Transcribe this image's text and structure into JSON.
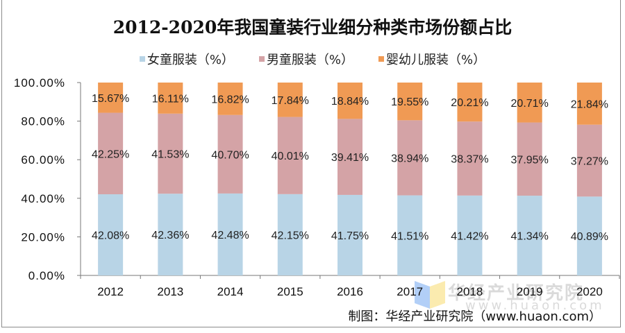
{
  "chart_data": {
    "type": "bar",
    "stacked": true,
    "title": "2012-2020年我国童装行业细分种类市场份额占比",
    "categories": [
      "2012",
      "2013",
      "2014",
      "2015",
      "2016",
      "2017",
      "2018",
      "2019",
      "2020"
    ],
    "series": [
      {
        "name": "女童服装（%）",
        "color": "#b8d4e6",
        "values": [
          42.08,
          42.36,
          42.48,
          42.15,
          41.75,
          41.51,
          41.42,
          41.34,
          40.89
        ]
      },
      {
        "name": "男童服装（%）",
        "color": "#d4a3a6",
        "values": [
          42.25,
          41.53,
          40.7,
          40.01,
          39.41,
          38.94,
          38.37,
          37.95,
          37.27
        ]
      },
      {
        "name": "婴幼儿服装（%）",
        "color": "#f09a54",
        "values": [
          15.67,
          16.11,
          16.82,
          17.84,
          18.84,
          19.55,
          20.21,
          20.71,
          21.84
        ]
      }
    ],
    "yticks": [
      "0.00%",
      "20.00%",
      "40.00%",
      "60.00%",
      "80.00%",
      "100.00%"
    ],
    "ylim": [
      0,
      100
    ],
    "grid": false,
    "legend_position": "top"
  },
  "source": "制图：华经产业研究院（www.huaon.com）",
  "watermark": {
    "name": "华经产业研究院",
    "url": "www.huaon.com"
  }
}
